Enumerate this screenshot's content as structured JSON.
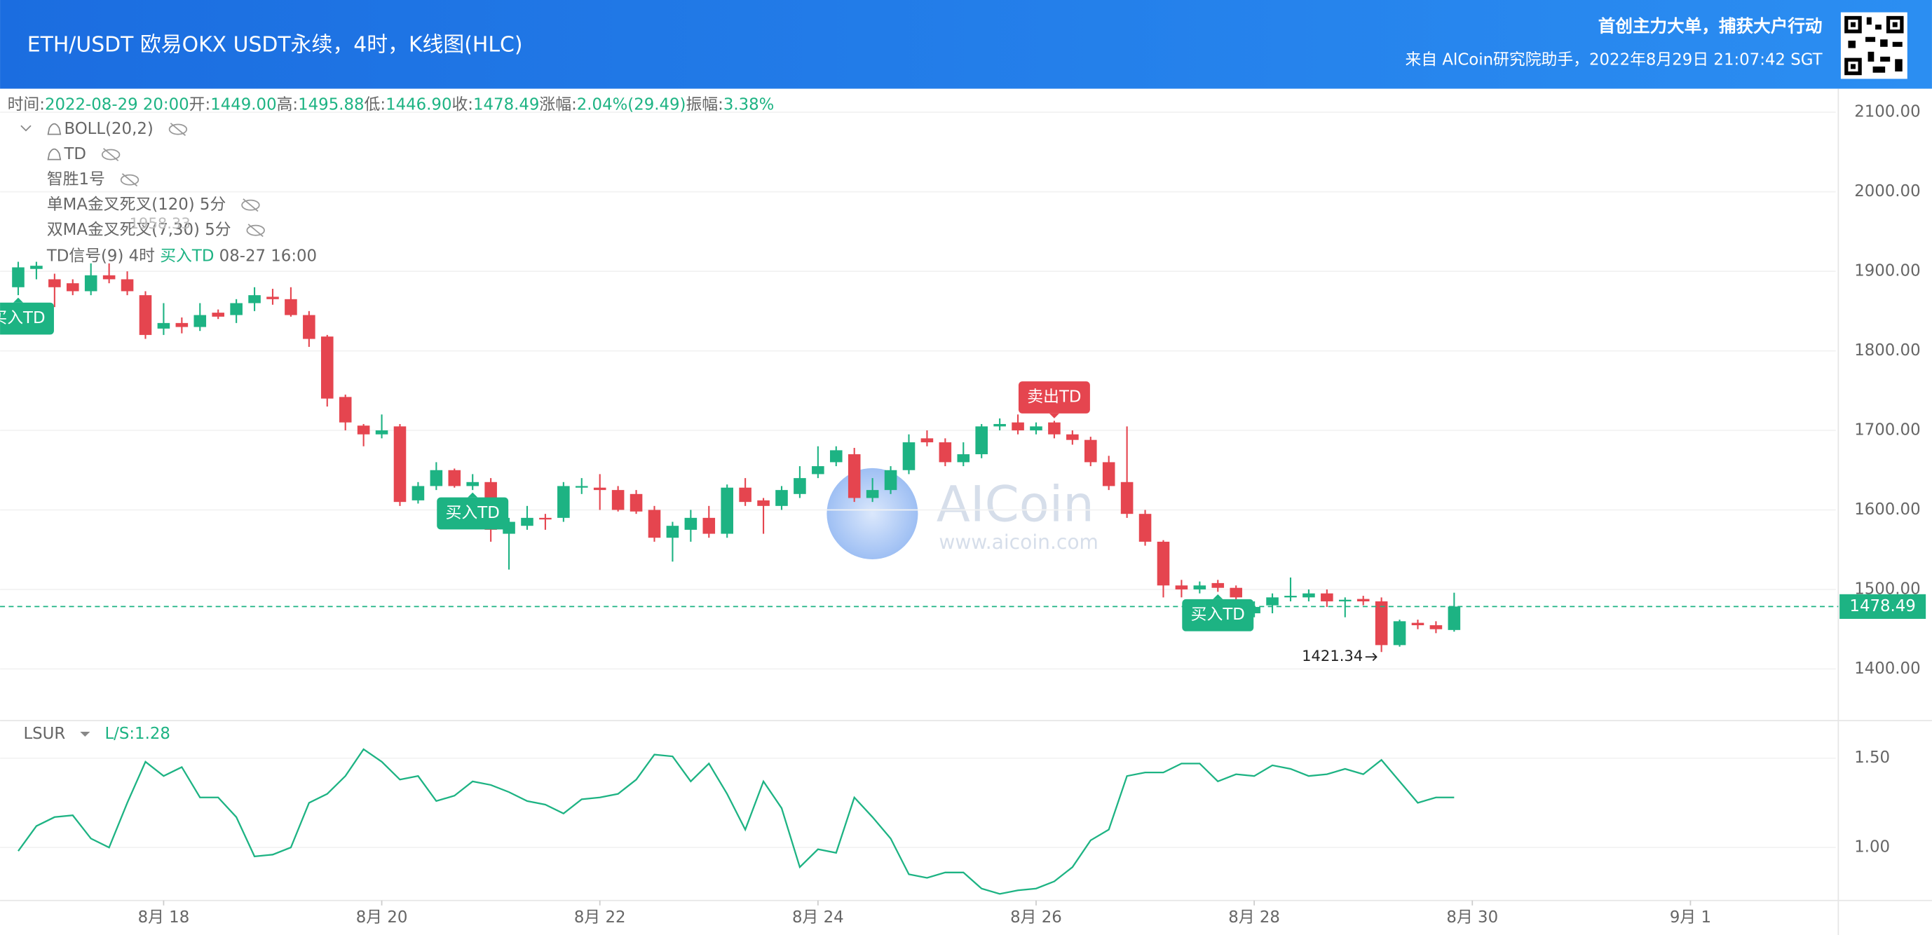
{
  "header": {
    "title": "ETH/USDT 欧易OKX USDT永续，4时，K线图(HLC)",
    "slogan": "首创主力大单，捕获大户行动",
    "source": "来自 AlCoin研究院助手，2022年8月29日 21:07:42 SGT"
  },
  "info": [
    "时间:",
    "2022-08-29 20:00",
    "开:",
    "1449.00",
    "高:",
    "1495.88",
    "低:",
    "1446.90",
    "收:",
    "1478.49",
    "涨幅:",
    "2.04%(29.49)",
    "振幅:",
    "3.38%"
  ],
  "indicators": [
    "BOLL(20,2)",
    "TD",
    "智胜1号",
    "单MA金叉死叉(120) 5分",
    "双MA金叉死叉(7,30) 5分"
  ],
  "td_signal": {
    "name": "TD信号(9) 4时",
    "signal": "买入TD",
    "time": "08-27 16:00"
  },
  "watermark": {
    "brand": "AICoin",
    "url": "www.aicoin.com"
  },
  "chart_data": [
    {
      "type": "candlestick",
      "up_color": "#1db383",
      "down_color": "#e5454f",
      "xlim": [
        -1,
        100
      ],
      "ylim": [
        1335,
        2125
      ],
      "yticks": [
        {
          "value": 1400,
          "label": "1400.00"
        },
        {
          "value": 1500,
          "label": "1500.00"
        },
        {
          "value": 1600,
          "label": "1600.00"
        },
        {
          "value": 1700,
          "label": "1700.00"
        },
        {
          "value": 1800,
          "label": "1800.00"
        },
        {
          "value": 1900,
          "label": "1900.00"
        },
        {
          "value": 2000,
          "label": "2000.00"
        },
        {
          "value": 2100,
          "label": "2100.00"
        }
      ],
      "xticks": [
        {
          "value": 8,
          "label": "8月 18"
        },
        {
          "value": 20,
          "label": "8月 20"
        },
        {
          "value": 32,
          "label": "8月 22"
        },
        {
          "value": 44,
          "label": "8月 24"
        },
        {
          "value": 56,
          "label": "8月 26"
        },
        {
          "value": 68,
          "label": "8月 28"
        },
        {
          "value": 80,
          "label": "8月 30"
        },
        {
          "value": 92,
          "label": "9月 1"
        }
      ],
      "open": [
        1880,
        1903,
        1890,
        1885,
        1875,
        1895,
        1890,
        1870,
        1828,
        1835,
        1830,
        1848,
        1845,
        1860,
        1868,
        1865,
        1845,
        1818,
        1742,
        1706,
        1695,
        1705,
        1612,
        1630,
        1650,
        1630,
        1635,
        1570,
        1580,
        1590,
        1590,
        1628,
        1628,
        1625,
        1620,
        1600,
        1565,
        1575,
        1590,
        1570,
        1628,
        1612,
        1605,
        1620,
        1645,
        1660,
        1670,
        1615,
        1625,
        1650,
        1690,
        1685,
        1660,
        1670,
        1705,
        1710,
        1700,
        1710,
        1695,
        1688,
        1660,
        1635,
        1595,
        1560,
        1505,
        1500,
        1508,
        1502,
        1470,
        1480,
        1490,
        1490,
        1495,
        1485,
        1488,
        1485,
        1430,
        1458,
        1455,
        1449.0
      ],
      "high": [
        1912,
        1912,
        1897,
        1890,
        1910,
        1910,
        1900,
        1875,
        1860,
        1842,
        1860,
        1852,
        1865,
        1880,
        1878,
        1880,
        1850,
        1820,
        1745,
        1708,
        1720,
        1708,
        1635,
        1660,
        1652,
        1645,
        1640,
        1590,
        1605,
        1595,
        1635,
        1640,
        1645,
        1630,
        1625,
        1605,
        1585,
        1600,
        1605,
        1632,
        1640,
        1615,
        1630,
        1655,
        1680,
        1680,
        1678,
        1640,
        1655,
        1695,
        1700,
        1690,
        1685,
        1708,
        1715,
        1720,
        1710,
        1712,
        1700,
        1692,
        1668,
        1705,
        1600,
        1562,
        1512,
        1510,
        1512,
        1505,
        1485,
        1495,
        1515,
        1500,
        1500,
        1490,
        1492,
        1490,
        1462,
        1462,
        1460,
        1495.88
      ],
      "low": [
        1870,
        1890,
        1855,
        1870,
        1870,
        1885,
        1870,
        1815,
        1820,
        1822,
        1825,
        1840,
        1835,
        1850,
        1858,
        1843,
        1805,
        1730,
        1700,
        1680,
        1690,
        1605,
        1608,
        1625,
        1628,
        1625,
        1560,
        1525,
        1575,
        1575,
        1585,
        1620,
        1600,
        1598,
        1595,
        1560,
        1535,
        1560,
        1565,
        1565,
        1605,
        1570,
        1600,
        1615,
        1640,
        1655,
        1610,
        1610,
        1620,
        1645,
        1680,
        1655,
        1655,
        1665,
        1700,
        1695,
        1695,
        1690,
        1682,
        1655,
        1625,
        1590,
        1555,
        1490,
        1490,
        1495,
        1497,
        1480,
        1465,
        1470,
        1485,
        1485,
        1478,
        1465,
        1480,
        1421.34,
        1428,
        1450,
        1445,
        1446.9
      ],
      "close": [
        1905,
        1907,
        1880,
        1875,
        1895,
        1890,
        1875,
        1820,
        1835,
        1830,
        1845,
        1843,
        1860,
        1870,
        1865,
        1845,
        1815,
        1740,
        1710,
        1695,
        1700,
        1610,
        1630,
        1650,
        1630,
        1635,
        1575,
        1585,
        1590,
        1588,
        1630,
        1630,
        1625,
        1600,
        1598,
        1565,
        1580,
        1590,
        1570,
        1628,
        1610,
        1605,
        1625,
        1640,
        1655,
        1675,
        1615,
        1625,
        1650,
        1685,
        1685,
        1660,
        1670,
        1705,
        1708,
        1700,
        1705,
        1695,
        1688,
        1660,
        1630,
        1595,
        1560,
        1505,
        1500,
        1505,
        1502,
        1490,
        1478,
        1490,
        1492,
        1495,
        1485,
        1487,
        1485,
        1430,
        1460,
        1455,
        1450,
        1478.49
      ],
      "last_price": 1478.49,
      "low_marker_candle": 75,
      "high_marker": 1958.33,
      "signals": [
        {
          "candle": 0,
          "label": "买入TD",
          "kind": "buy"
        },
        {
          "candle": 25,
          "label": "买入TD",
          "kind": "buy"
        },
        {
          "candle": 57,
          "label": "卖出TD",
          "kind": "sell"
        },
        {
          "candle": 66,
          "label": "买入TD",
          "kind": "buy"
        }
      ]
    },
    {
      "type": "line",
      "name": "LSUR",
      "current_label": "L/S:1.28",
      "color": "#1db383",
      "xlim": [
        -1,
        100
      ],
      "ylim": [
        0.71,
        1.71
      ],
      "yticks": [
        {
          "value": 1.0,
          "label": "1.00"
        },
        {
          "value": 1.5,
          "label": "1.50"
        }
      ],
      "values": [
        0.98,
        1.12,
        1.17,
        1.18,
        1.05,
        1.0,
        1.25,
        1.48,
        1.4,
        1.45,
        1.28,
        1.28,
        1.17,
        0.95,
        0.96,
        1.0,
        1.25,
        1.3,
        1.4,
        1.55,
        1.48,
        1.38,
        1.4,
        1.26,
        1.29,
        1.37,
        1.35,
        1.31,
        1.26,
        1.24,
        1.19,
        1.27,
        1.28,
        1.3,
        1.38,
        1.52,
        1.51,
        1.37,
        1.47,
        1.3,
        1.1,
        1.37,
        1.22,
        0.89,
        0.99,
        0.97,
        1.28,
        1.17,
        1.05,
        0.85,
        0.83,
        0.86,
        0.86,
        0.77,
        0.74,
        0.76,
        0.77,
        0.81,
        0.89,
        1.04,
        1.1,
        1.4,
        1.42,
        1.42,
        1.47,
        1.47,
        1.37,
        1.41,
        1.4,
        1.46,
        1.44,
        1.4,
        1.41,
        1.44,
        1.41,
        1.49,
        1.37,
        1.25,
        1.28,
        1.28
      ]
    }
  ]
}
